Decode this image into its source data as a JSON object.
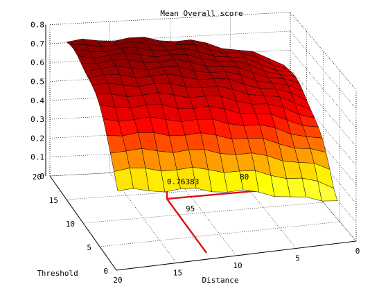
{
  "chart_data": {
    "type": "surface",
    "title": "Mean Overall score",
    "xlabel": "Distance",
    "ylabel": "Threshold",
    "zlabel": "",
    "x_ticks": [
      "0",
      "5",
      "10",
      "15",
      "20"
    ],
    "y_ticks": [
      "0",
      "5",
      "10",
      "15",
      "20"
    ],
    "z_ticks": [
      "0",
      "0.1",
      "0.2",
      "0.3",
      "0.4",
      "0.5",
      "0.6",
      "0.7",
      "0.8"
    ],
    "xlim": [
      0,
      20
    ],
    "ylim": [
      0,
      20
    ],
    "zlim": [
      0,
      0.8
    ],
    "grid": true,
    "colormap": "hot",
    "surface_note": "mean overall score over a 15x15 grid of Distance and Threshold; highest near the back corner (about 0.68) and falling to about 0.2 at the front-right edge",
    "marker": {
      "z_value_label": "0.76383",
      "distance_label": "80",
      "threshold_label": "95",
      "color": "#dd1111"
    },
    "colors": {
      "high": "#a00000",
      "mid": "#e83000",
      "low": "#ffff40"
    }
  }
}
